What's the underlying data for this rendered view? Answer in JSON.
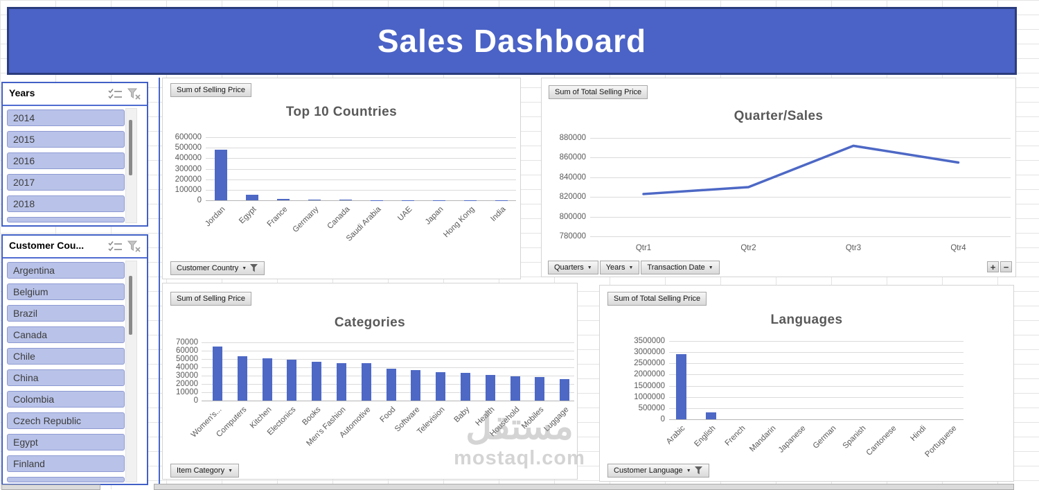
{
  "banner": {
    "title": "Sales Dashboard"
  },
  "slicers": [
    {
      "title": "Years",
      "items": [
        "2014",
        "2015",
        "2016",
        "2017",
        "2018"
      ]
    },
    {
      "title": "Customer Cou...",
      "items": [
        "Argentina",
        "Belgium",
        "Brazil",
        "Canada",
        "Chile",
        "China",
        "Colombia",
        "Czech Republic",
        "Egypt",
        "Finland"
      ]
    }
  ],
  "icons": {
    "multi_select": "multi-select-checklist",
    "clear_filter": "funnel-x",
    "field_dropdown": "▼",
    "axis_funnel": "funnel",
    "expand": "+",
    "collapse": "−"
  },
  "colors": {
    "accent": "#4D68C5",
    "banner_fill": "#4B63C6",
    "banner_border": "#2B3C7D",
    "slicer_border": "#4160C6",
    "slicer_item_fill": "#B9C3E9",
    "title_text": "#595959"
  },
  "watermark": {
    "arabic": "مستقل",
    "latin": "mostaql.com"
  },
  "chart_data": [
    {
      "id": "top10",
      "type": "bar",
      "title": "Top 10 Countries",
      "value_button": "Sum of Selling Price",
      "categories": [
        "Jordan",
        "Egypt",
        "France",
        "Germany",
        "Canada",
        "Saudi Arabia",
        "UAE",
        "Japan",
        "Hong Kong",
        "India"
      ],
      "values": [
        480000,
        50000,
        15000,
        9000,
        9000,
        3000,
        2500,
        2000,
        1500,
        1000
      ],
      "ylim": [
        0,
        600000
      ],
      "ystep": 100000,
      "grid": true,
      "legend": "none",
      "axis_buttons": [
        {
          "label": "Customer Country",
          "funnel": true
        }
      ]
    },
    {
      "id": "quarter",
      "type": "line",
      "title": "Quarter/Sales",
      "value_button": "Sum of Total Selling Price",
      "categories": [
        "Qtr1",
        "Qtr2",
        "Qtr3",
        "Qtr4"
      ],
      "values": [
        823000,
        830000,
        872000,
        855000
      ],
      "ylim": [
        780000,
        880000
      ],
      "ystep": 20000,
      "grid": true,
      "legend": "none",
      "axis_buttons": [
        {
          "label": "Quarters",
          "dropdown": true
        },
        {
          "label": "Years",
          "dropdown": true
        },
        {
          "label": "Transaction Date",
          "dropdown": true
        }
      ],
      "has_expand_collapse": true
    },
    {
      "id": "categories",
      "type": "bar",
      "title": "Categories",
      "value_button": "Sum of Selling Price",
      "categories": [
        "Women's...",
        "Computers",
        "Kitchen",
        "Electonics",
        "Books",
        "Men's Fashion",
        "Automotive",
        "Food",
        "Software",
        "Television",
        "Baby",
        "Health",
        "Household",
        "Mobiles",
        "Luggage"
      ],
      "values": [
        65000,
        53000,
        50500,
        49500,
        46500,
        45000,
        45000,
        38000,
        36500,
        34500,
        33500,
        31000,
        29500,
        28500,
        26000
      ],
      "ylim": [
        0,
        70000
      ],
      "ystep": 10000,
      "grid": true,
      "legend": "none",
      "axis_buttons": [
        {
          "label": "Item Category",
          "dropdown": true
        }
      ]
    },
    {
      "id": "languages",
      "type": "bar",
      "title": "Languages",
      "value_button": "Sum of Total Selling Price",
      "categories": [
        "Arabic",
        "English",
        "French",
        "Mandarin",
        "Japanese",
        "German",
        "Spanish",
        "Cantonese",
        "Hindi",
        "Portuguese"
      ],
      "values": [
        2900000,
        320000,
        0,
        0,
        0,
        0,
        0,
        0,
        0,
        0
      ],
      "ylim": [
        0,
        3500000
      ],
      "ystep": 500000,
      "grid": true,
      "legend": "none",
      "axis_buttons": [
        {
          "label": "Customer Language",
          "funnel": true
        }
      ]
    }
  ]
}
